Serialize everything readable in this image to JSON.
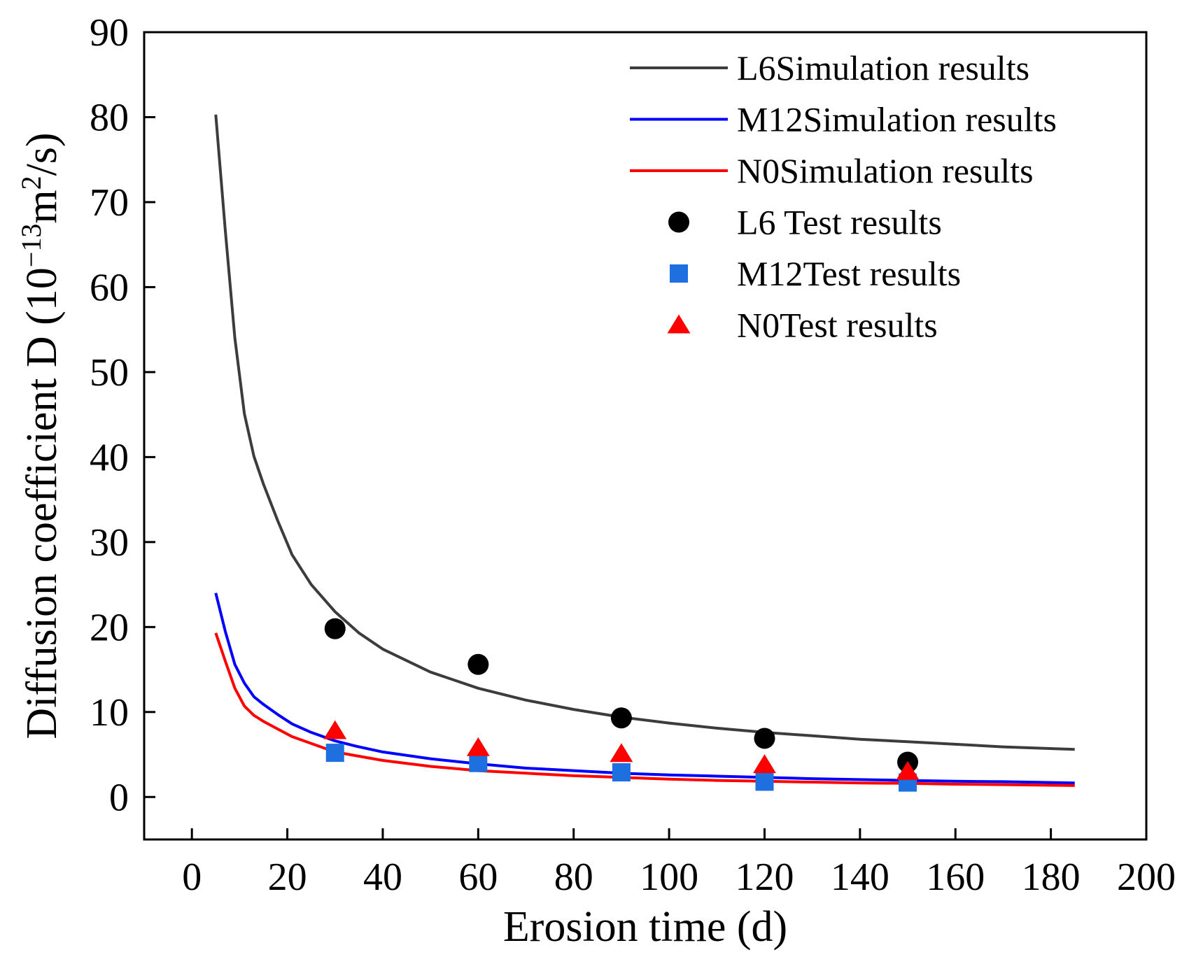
{
  "chart_data": {
    "type": "line",
    "title": "",
    "xlabel": "Erosion time (d)",
    "ylabel": {
      "prefix": "Diffusion coefficient D (10",
      "exp1": "−13",
      "middle": "m",
      "exp2": "2",
      "suffix": "/s)"
    },
    "xlim": [
      -10,
      200
    ],
    "ylim": [
      -5,
      90
    ],
    "xticks": [
      0,
      20,
      40,
      60,
      80,
      100,
      120,
      140,
      160,
      180,
      200
    ],
    "yticks": [
      0,
      10,
      20,
      30,
      40,
      50,
      60,
      70,
      80,
      90
    ],
    "grid": false,
    "legend_position": "top-right",
    "series": [
      {
        "name": "L6Simulation results",
        "kind": "line",
        "color": "#3c3c3c",
        "x": [
          5,
          7,
          9,
          11,
          13,
          15,
          18,
          21,
          25,
          30,
          35,
          40,
          50,
          60,
          70,
          80,
          90,
          100,
          110,
          120,
          130,
          140,
          150,
          160,
          170,
          185
        ],
        "y": [
          80.3,
          66.7,
          54.0,
          45.1,
          40.1,
          36.8,
          32.5,
          28.5,
          25.0,
          21.8,
          19.3,
          17.4,
          14.7,
          12.8,
          11.4,
          10.3,
          9.4,
          8.7,
          8.1,
          7.6,
          7.2,
          6.8,
          6.5,
          6.2,
          5.9,
          5.6
        ]
      },
      {
        "name": "M12Simulation results",
        "kind": "line",
        "color": "#0000ff",
        "x": [
          5,
          7,
          9,
          11,
          13,
          15,
          18,
          21,
          25,
          30,
          35,
          40,
          50,
          60,
          70,
          80,
          90,
          100,
          110,
          120,
          130,
          140,
          150,
          160,
          170,
          185
        ],
        "y": [
          24.0,
          19.5,
          15.6,
          13.4,
          11.8,
          10.9,
          9.7,
          8.6,
          7.6,
          6.6,
          5.9,
          5.3,
          4.5,
          3.9,
          3.4,
          3.1,
          2.8,
          2.6,
          2.45,
          2.3,
          2.15,
          2.05,
          1.95,
          1.85,
          1.8,
          1.65
        ]
      },
      {
        "name": "N0Simulation results",
        "kind": "line",
        "color": "#ff0000",
        "x": [
          5,
          7,
          9,
          11,
          13,
          15,
          18,
          21,
          25,
          30,
          35,
          40,
          50,
          60,
          70,
          80,
          90,
          100,
          110,
          120,
          130,
          140,
          150,
          160,
          170,
          185
        ],
        "y": [
          19.3,
          16.0,
          12.8,
          10.7,
          9.6,
          8.9,
          8.0,
          7.1,
          6.3,
          5.3,
          4.8,
          4.3,
          3.6,
          3.1,
          2.8,
          2.5,
          2.3,
          2.1,
          1.95,
          1.85,
          1.75,
          1.65,
          1.6,
          1.5,
          1.45,
          1.35
        ]
      },
      {
        "name": "L6 Test results",
        "kind": "scatter",
        "marker": "circle",
        "color": "#000000",
        "x": [
          30,
          60,
          90,
          120,
          150
        ],
        "y": [
          19.8,
          15.6,
          9.3,
          6.9,
          4.1
        ]
      },
      {
        "name": "M12Test results",
        "kind": "scatter",
        "marker": "square",
        "color": "#1e6fe0",
        "x": [
          30,
          60,
          90,
          120,
          150
        ],
        "y": [
          5.2,
          4.0,
          2.9,
          1.8,
          1.7
        ]
      },
      {
        "name": "N0Test results",
        "kind": "scatter",
        "marker": "triangle",
        "color": "#ff0000",
        "x": [
          30,
          60,
          90,
          120,
          150
        ],
        "y": [
          7.8,
          5.8,
          5.1,
          3.8,
          3.0
        ]
      }
    ]
  }
}
